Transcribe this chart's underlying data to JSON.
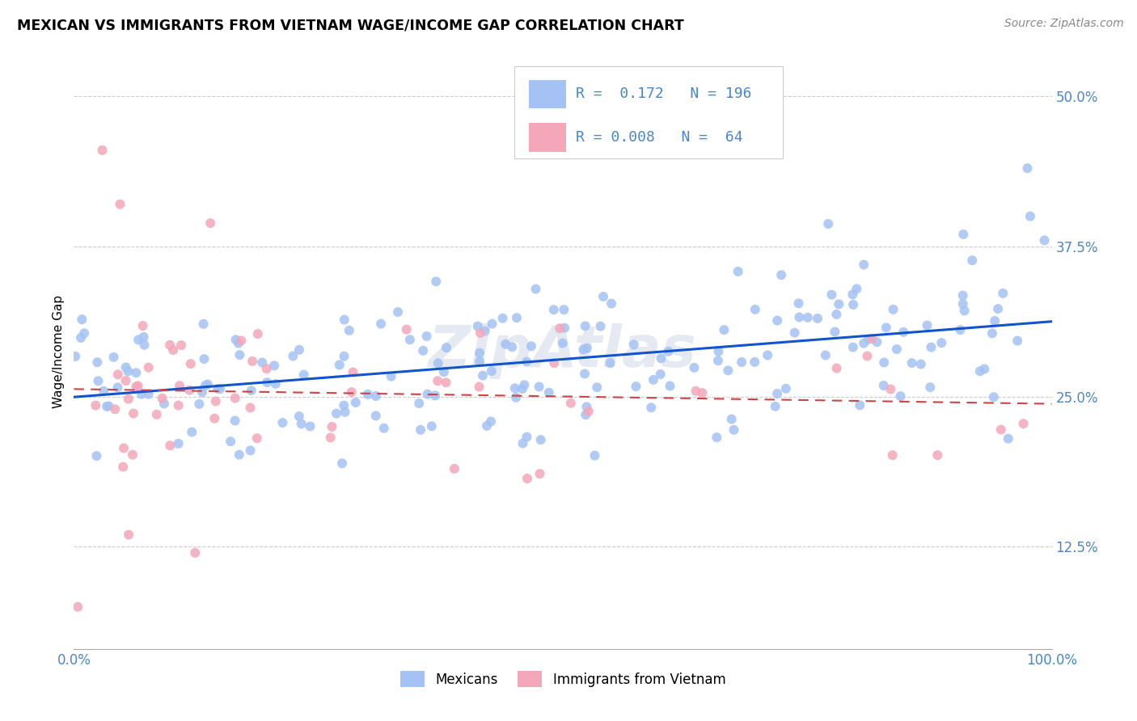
{
  "title": "MEXICAN VS IMMIGRANTS FROM VIETNAM WAGE/INCOME GAP CORRELATION CHART",
  "source": "Source: ZipAtlas.com",
  "ylabel": "Wage/Income Gap",
  "ytick_vals": [
    0.125,
    0.25,
    0.375,
    0.5
  ],
  "legend_label1": "Mexicans",
  "legend_label2": "Immigrants from Vietnam",
  "color_blue": "#a4c2f4",
  "color_pink": "#f4a7b9",
  "color_blue_text": "#4a86c8",
  "trendline_blue": "#1155cc",
  "trendline_pink": "#cc4444",
  "background": "#ffffff",
  "grid_color": "#cccccc",
  "watermark": "ZipAtlas",
  "ylim_low": 0.04,
  "ylim_high": 0.535,
  "mex_seed": 7,
  "viet_seed": 13
}
